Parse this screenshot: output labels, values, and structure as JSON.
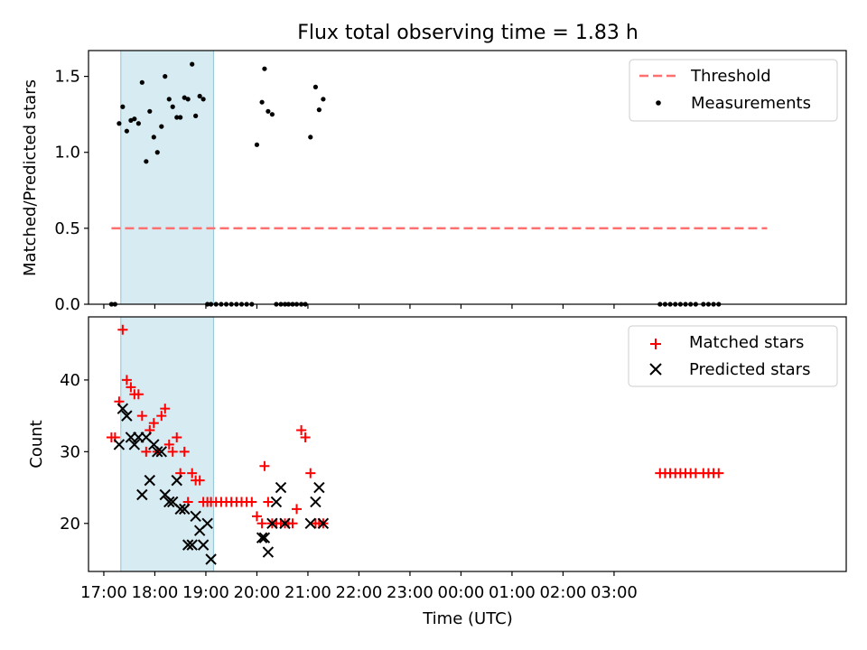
{
  "chart_data": [
    {
      "type": "scatter",
      "title": "Flux total observing time = 1.83 h",
      "xlabel": "",
      "ylabel": "Matched/Predicted stars",
      "ylim": [
        0,
        1.67
      ],
      "yticks": [
        0.0,
        0.5,
        1.0,
        1.5
      ],
      "ytick_labels": [
        "0.0",
        "0.5",
        "1.0",
        "1.5"
      ],
      "shaded_span": {
        "start": "17:20",
        "end": "19:09",
        "color": "#add8e6"
      },
      "legend": {
        "position": "top-right",
        "entries": [
          "Threshold",
          "Measurements"
        ]
      },
      "threshold": {
        "name": "Threshold",
        "value": 0.5,
        "x_start": 17.15,
        "x_end": 30.0,
        "color": "#ff6f6f"
      },
      "series": [
        {
          "name": "Measurements",
          "x": [
            17.15,
            17.22,
            17.3,
            17.37,
            17.45,
            17.53,
            17.6,
            17.68,
            17.75,
            17.83,
            17.9,
            17.98,
            18.05,
            18.13,
            18.2,
            18.28,
            18.35,
            18.43,
            18.5,
            18.58,
            18.65,
            18.73,
            18.8,
            18.88,
            18.95,
            19.03,
            19.1,
            19.2,
            19.3,
            19.4,
            19.5,
            19.6,
            19.7,
            19.8,
            19.9,
            20.0,
            20.1,
            20.15,
            20.22,
            20.3,
            20.38,
            20.47,
            20.55,
            20.62,
            20.7,
            20.78,
            20.87,
            20.95,
            21.05,
            21.15,
            21.22,
            21.3,
            27.9,
            28.0,
            28.1,
            28.2,
            28.3,
            28.4,
            28.5,
            28.6,
            28.75,
            28.85,
            28.95,
            29.05
          ],
          "y": [
            0,
            0,
            1.19,
            1.3,
            1.14,
            1.21,
            1.22,
            1.19,
            1.46,
            0.94,
            1.27,
            1.1,
            1.0,
            1.17,
            1.5,
            1.35,
            1.3,
            1.23,
            1.23,
            1.36,
            1.35,
            1.58,
            1.24,
            1.37,
            1.35,
            0,
            0,
            0,
            0,
            0,
            0,
            0,
            0,
            0,
            0,
            1.05,
            1.33,
            1.55,
            1.27,
            1.25,
            0,
            0,
            0,
            0,
            0,
            0,
            0,
            0,
            1.1,
            1.43,
            1.28,
            1.35,
            0,
            0,
            0,
            0,
            0,
            0,
            0,
            0,
            0,
            0,
            0,
            0
          ]
        }
      ]
    },
    {
      "type": "scatter",
      "title": "",
      "xlabel": "Time (UTC)",
      "ylabel": "Count",
      "ylim": [
        13.3,
        48.8
      ],
      "yticks": [
        20,
        30,
        40
      ],
      "ytick_labels": [
        "20",
        "30",
        "40"
      ],
      "xlim": [
        16.7,
        31.55
      ],
      "x_ticks": [
        17,
        18,
        19,
        20,
        21,
        22,
        23,
        24,
        25,
        26,
        27
      ],
      "x_tick_labels": [
        "17:00",
        "18:00",
        "19:00",
        "20:00",
        "21:00",
        "22:00",
        "23:00",
        "00:00",
        "01:00",
        "02:00",
        "03:00"
      ],
      "shaded_span": {
        "start": "17:20",
        "end": "19:09",
        "color": "#add8e6"
      },
      "legend": {
        "position": "top-right",
        "entries": [
          "Matched stars",
          "Predicted stars"
        ]
      },
      "series": [
        {
          "name": "Matched stars",
          "marker": "+",
          "color": "#ff0000",
          "x": [
            17.15,
            17.22,
            17.3,
            17.37,
            17.45,
            17.53,
            17.6,
            17.68,
            17.75,
            17.83,
            17.9,
            17.98,
            18.05,
            18.13,
            18.2,
            18.28,
            18.35,
            18.43,
            18.5,
            18.58,
            18.65,
            18.73,
            18.8,
            18.88,
            18.95,
            19.03,
            19.1,
            19.2,
            19.3,
            19.4,
            19.5,
            19.6,
            19.7,
            19.8,
            19.9,
            20.0,
            20.1,
            20.15,
            20.22,
            20.3,
            20.38,
            20.47,
            20.55,
            20.62,
            20.7,
            20.78,
            20.87,
            20.95,
            21.05,
            21.15,
            21.22,
            21.3,
            27.9,
            28.0,
            28.1,
            28.2,
            28.3,
            28.4,
            28.5,
            28.6,
            28.75,
            28.85,
            28.95,
            29.05
          ],
          "y": [
            32,
            32,
            37,
            47,
            40,
            39,
            38,
            38,
            35,
            30,
            33,
            34,
            30,
            35,
            36,
            31,
            30,
            32,
            27,
            30,
            23,
            27,
            26,
            26,
            23,
            23,
            23,
            23,
            23,
            23,
            23,
            23,
            23,
            23,
            23,
            21,
            20,
            28,
            23,
            20,
            20,
            20,
            20,
            20,
            20,
            22,
            33,
            32,
            27,
            20,
            20,
            20,
            27,
            27,
            27,
            27,
            27,
            27,
            27,
            27,
            27,
            27,
            27,
            27
          ]
        },
        {
          "name": "Predicted stars",
          "marker": "x",
          "color": "#000000",
          "x": [
            17.3,
            17.37,
            17.45,
            17.53,
            17.6,
            17.68,
            17.75,
            17.83,
            17.9,
            17.98,
            18.05,
            18.13,
            18.2,
            18.28,
            18.35,
            18.43,
            18.5,
            18.58,
            18.65,
            18.73,
            18.8,
            18.88,
            18.95,
            19.03,
            19.1,
            20.1,
            20.15,
            20.22,
            20.3,
            20.38,
            20.47,
            20.55,
            21.05,
            21.15,
            21.22,
            21.3
          ],
          "y": [
            31,
            36,
            35,
            32,
            31,
            32,
            24,
            32,
            26,
            31,
            30,
            30,
            24,
            23,
            23,
            26,
            22,
            22,
            17,
            17,
            21,
            19,
            17,
            20,
            15,
            18,
            18,
            16,
            20,
            23,
            25,
            20,
            20,
            23,
            25,
            20
          ]
        }
      ]
    }
  ]
}
